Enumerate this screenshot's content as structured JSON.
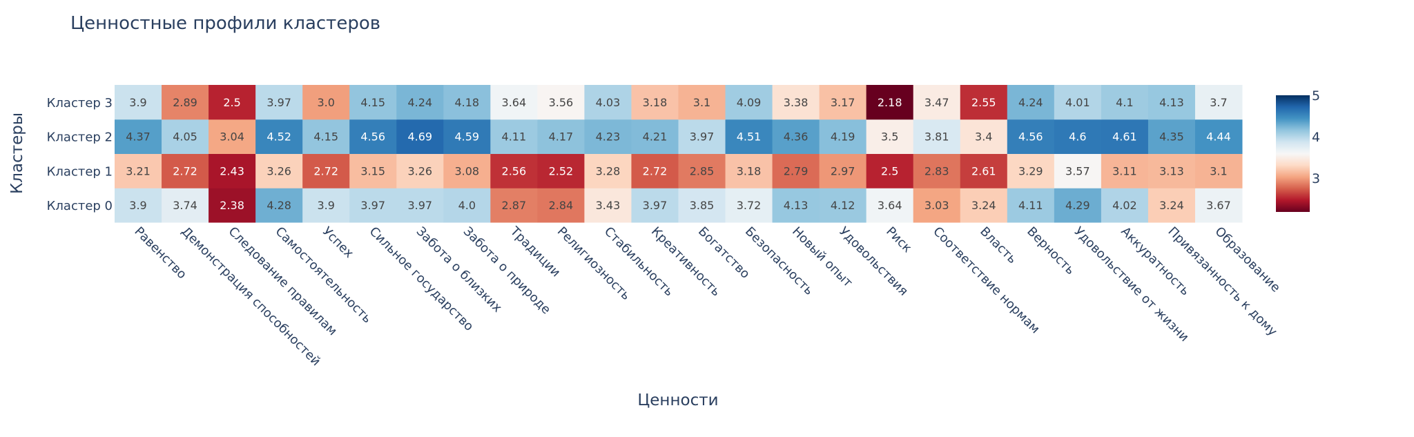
{
  "chart_data": {
    "type": "heatmap",
    "title": "Ценностные профили кластеров",
    "xlabel": "Ценности",
    "ylabel": "Кластеры",
    "x": [
      "Равенство",
      "Демонстрация способностей",
      "Следование правилам",
      "Самостоятельность",
      "Успех",
      "Сильное государство",
      "Забота о близких",
      "Забота о природе",
      "Традиции",
      "Религиозность",
      "Стабильность",
      "Креативность",
      "Богатство",
      "Безопасность",
      "Новый опыт",
      "Удовольствия",
      "Риск",
      "Соответствие нормам",
      "Власть",
      "Верность",
      "Удовольствие от жизни",
      "Аккуратность",
      "Привязанность к дому",
      "Образование"
    ],
    "y": [
      "Кластер 0",
      "Кластер 1",
      "Кластер 2",
      "Кластер 3"
    ],
    "z": [
      [
        3.9,
        3.74,
        2.38,
        4.28,
        3.9,
        3.97,
        3.97,
        4.0,
        2.87,
        2.84,
        3.43,
        3.97,
        3.85,
        3.72,
        4.13,
        4.12,
        3.64,
        3.03,
        3.24,
        4.11,
        4.29,
        4.02,
        3.24,
        3.67
      ],
      [
        3.21,
        2.72,
        2.43,
        3.26,
        2.72,
        3.15,
        3.26,
        3.08,
        2.56,
        2.52,
        3.28,
        2.72,
        2.85,
        3.18,
        2.79,
        2.97,
        2.5,
        2.83,
        2.61,
        3.29,
        3.57,
        3.11,
        3.13,
        3.1
      ],
      [
        4.37,
        4.05,
        3.04,
        4.52,
        4.15,
        4.56,
        4.69,
        4.59,
        4.11,
        4.17,
        4.23,
        4.21,
        3.97,
        4.51,
        4.36,
        4.19,
        3.5,
        3.81,
        3.4,
        4.56,
        4.6,
        4.61,
        4.35,
        4.44
      ],
      [
        3.9,
        2.89,
        2.5,
        3.97,
        3.0,
        4.15,
        4.24,
        4.18,
        3.64,
        3.56,
        4.03,
        3.18,
        3.1,
        4.09,
        3.38,
        3.17,
        2.18,
        3.47,
        2.55,
        4.24,
        4.01,
        4.1,
        4.13,
        3.7
      ]
    ],
    "text": [
      [
        "3.9",
        "3.74",
        "2.38",
        "4.28",
        "3.9",
        "3.97",
        "3.97",
        "4.0",
        "2.87",
        "2.84",
        "3.43",
        "3.97",
        "3.85",
        "3.72",
        "4.13",
        "4.12",
        "3.64",
        "3.03",
        "3.24",
        "4.11",
        "4.29",
        "4.02",
        "3.24",
        "3.67"
      ],
      [
        "3.21",
        "2.72",
        "2.43",
        "3.26",
        "2.72",
        "3.15",
        "3.26",
        "3.08",
        "2.56",
        "2.52",
        "3.28",
        "2.72",
        "2.85",
        "3.18",
        "2.79",
        "2.97",
        "2.5",
        "2.83",
        "2.61",
        "3.29",
        "3.57",
        "3.11",
        "3.13",
        "3.1"
      ],
      [
        "4.37",
        "4.05",
        "3.04",
        "4.52",
        "4.15",
        "4.56",
        "4.69",
        "4.59",
        "4.11",
        "4.17",
        "4.23",
        "4.21",
        "3.97",
        "4.51",
        "4.36",
        "4.19",
        "3.5",
        "3.81",
        "3.4",
        "4.56",
        "4.6",
        "4.61",
        "4.35",
        "4.44"
      ],
      [
        "3.9",
        "2.89",
        "2.5",
        "3.97",
        "3.0",
        "4.15",
        "4.24",
        "4.18",
        "3.64",
        "3.56",
        "4.03",
        "3.18",
        "3.1",
        "4.09",
        "3.38",
        "3.17",
        "2.18",
        "3.47",
        "2.55",
        "4.24",
        "4.01",
        "4.1",
        "4.13",
        "3.7"
      ]
    ],
    "colorscale": "RdBu",
    "zmin": 2.18,
    "zmax": 5.0,
    "colorbar": {
      "tickvals": [
        3,
        4,
        5
      ],
      "ticktext": [
        "3",
        "4",
        "5"
      ],
      "placement": "right"
    },
    "colors": {
      "text_dark": "#444444",
      "text_light": "#ffffff",
      "axis_text": "#2a3f5f"
    }
  }
}
